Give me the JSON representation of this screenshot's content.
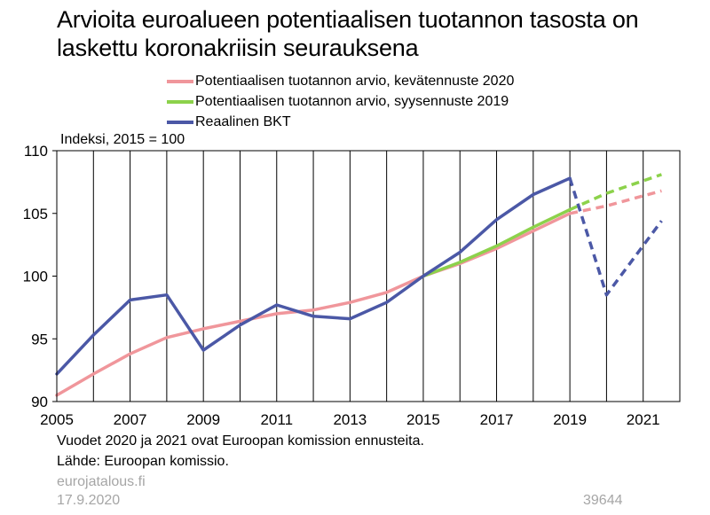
{
  "title_lines": [
    "Arvioita euroalueen potentiaalisen tuotannon tasosta on",
    "laskettu koronakriisin seurauksena"
  ],
  "unit_label": "Indeksi, 2015 = 100",
  "footnote": "Vuodet 2020 ja 2021 ovat Euroopan komission ennusteita.",
  "source": "Lähde: Euroopan komissio.",
  "website": "eurojatalous.fi",
  "date": "17.9.2020",
  "chart_id": "39644",
  "chart_data": {
    "type": "line",
    "x_ticks": [
      "2005",
      "2007",
      "2009",
      "2011",
      "2013",
      "2015",
      "2017",
      "2019",
      "2021"
    ],
    "y_ticks": [
      "110",
      "105",
      "100",
      "95",
      "90"
    ],
    "xlim": [
      2005,
      2022
    ],
    "ylim": [
      90,
      110
    ],
    "grid": "vertical",
    "legend_position": "top",
    "series": [
      {
        "name": "Potentiaalisen tuotannon arvio, kevätennuste 2020",
        "color": "#f0969b",
        "solid": [
          [
            2005,
            90.5
          ],
          [
            2006,
            92.2
          ],
          [
            2007,
            93.8
          ],
          [
            2008,
            95.1
          ],
          [
            2009,
            95.8
          ],
          [
            2010,
            96.4
          ],
          [
            2011,
            97.0
          ],
          [
            2012,
            97.3
          ],
          [
            2013,
            97.9
          ],
          [
            2014,
            98.7
          ],
          [
            2015,
            100.0
          ],
          [
            2016,
            101.0
          ],
          [
            2017,
            102.2
          ],
          [
            2018,
            103.6
          ],
          [
            2019,
            105.0
          ]
        ],
        "dashed": [
          [
            2019,
            105.0
          ],
          [
            2020,
            105.6
          ],
          [
            2021.5,
            106.8
          ]
        ]
      },
      {
        "name": "Potentiaalisen tuotannon arvio, syysennuste 2019",
        "color": "#8cd24b",
        "solid": [
          [
            2015,
            100.0
          ],
          [
            2016,
            101.1
          ],
          [
            2017,
            102.4
          ],
          [
            2018,
            103.9
          ],
          [
            2019,
            105.3
          ]
        ],
        "dashed": [
          [
            2019,
            105.3
          ],
          [
            2020,
            106.6
          ],
          [
            2021.5,
            108.1
          ]
        ]
      },
      {
        "name": "Reaalinen BKT",
        "color": "#4b58a6",
        "solid": [
          [
            2005,
            92.2
          ],
          [
            2006,
            95.3
          ],
          [
            2007,
            98.1
          ],
          [
            2008,
            98.5
          ],
          [
            2009,
            94.1
          ],
          [
            2010,
            96.1
          ],
          [
            2011,
            97.7
          ],
          [
            2012,
            96.8
          ],
          [
            2013,
            96.6
          ],
          [
            2014,
            97.9
          ],
          [
            2015,
            100.0
          ],
          [
            2016,
            101.9
          ],
          [
            2017,
            104.5
          ],
          [
            2018,
            106.5
          ],
          [
            2019,
            107.8
          ]
        ],
        "dashed": [
          [
            2019,
            107.8
          ],
          [
            2020,
            98.5
          ],
          [
            2021.5,
            104.4
          ]
        ]
      }
    ]
  }
}
